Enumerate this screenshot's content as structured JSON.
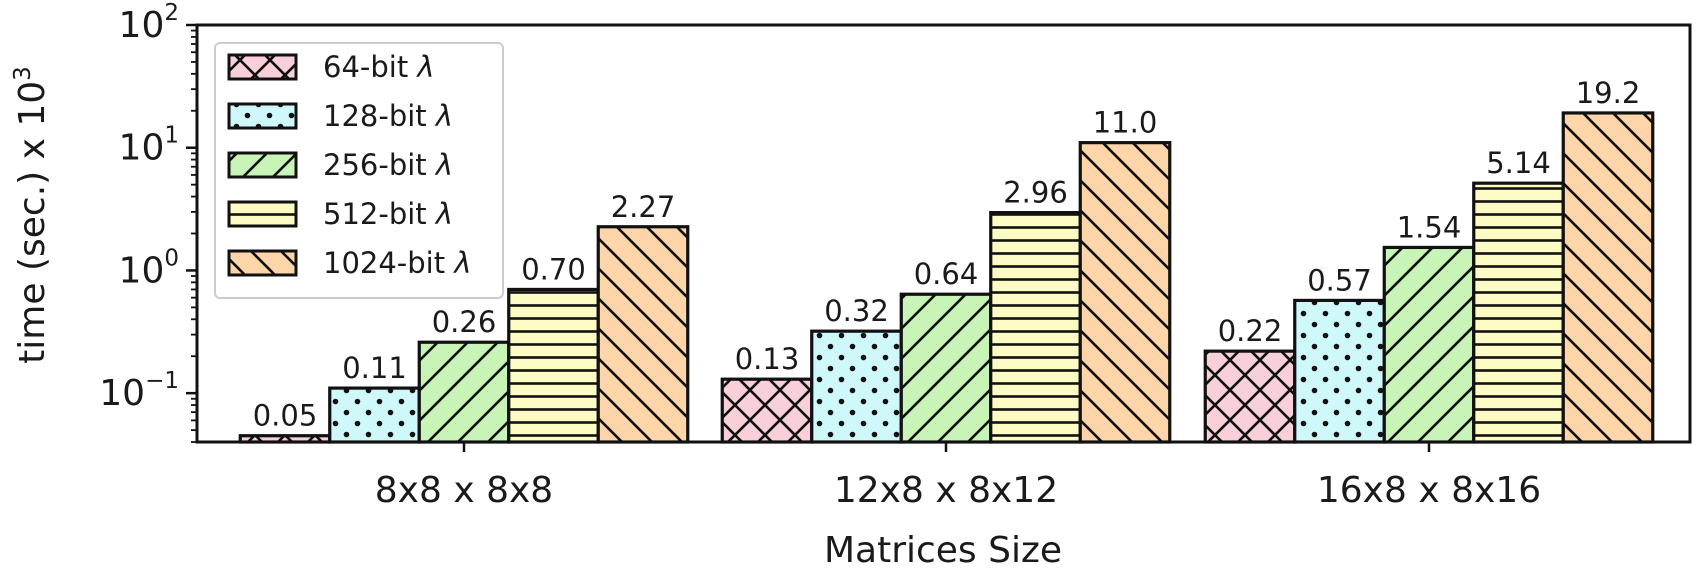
{
  "chart_data": {
    "type": "bar",
    "xlabel": "Matrices Size",
    "ylabel": "time (sec.) x 10",
    "ylabel_exponent": "3",
    "yscale": "log",
    "ylim": [
      0.04,
      100
    ],
    "yticks": [
      {
        "value": 0.1,
        "base": "10",
        "exp": "−1"
      },
      {
        "value": 1,
        "base": "10",
        "exp": "0"
      },
      {
        "value": 10,
        "base": "10",
        "exp": "1"
      },
      {
        "value": 100,
        "base": "10",
        "exp": "2"
      }
    ],
    "categories": [
      "8x8 x 8x8",
      "12x8 x 8x12",
      "16x8 x 8x16"
    ],
    "legend_position": "top-left",
    "legend_lambda": "λ",
    "grid": false,
    "series": [
      {
        "name": "64-bit ",
        "values": [
          0.045,
          0.13,
          0.22
        ],
        "labels": [
          "0.05",
          "0.13",
          "0.22"
        ],
        "color": "#f9cfd9",
        "pattern": "crosshatch"
      },
      {
        "name": "128-bit ",
        "values": [
          0.11,
          0.32,
          0.57
        ],
        "labels": [
          "0.11",
          "0.32",
          "0.57"
        ],
        "color": "#cff8fa",
        "pattern": "dots"
      },
      {
        "name": "256-bit ",
        "values": [
          0.26,
          0.64,
          1.54
        ],
        "labels": [
          "0.26",
          "0.64",
          "1.54"
        ],
        "color": "#c8f4b8",
        "pattern": "forward-diagonal"
      },
      {
        "name": "512-bit ",
        "values": [
          0.7,
          2.96,
          5.14
        ],
        "labels": [
          "0.70",
          "2.96",
          "5.14"
        ],
        "color": "#fdfbc4",
        "pattern": "horizontal"
      },
      {
        "name": "1024-bit ",
        "values": [
          2.27,
          11.0,
          19.2
        ],
        "labels": [
          "2.27",
          "11.0",
          "19.2"
        ],
        "color": "#fdd5a8",
        "pattern": "back-diagonal"
      }
    ]
  }
}
